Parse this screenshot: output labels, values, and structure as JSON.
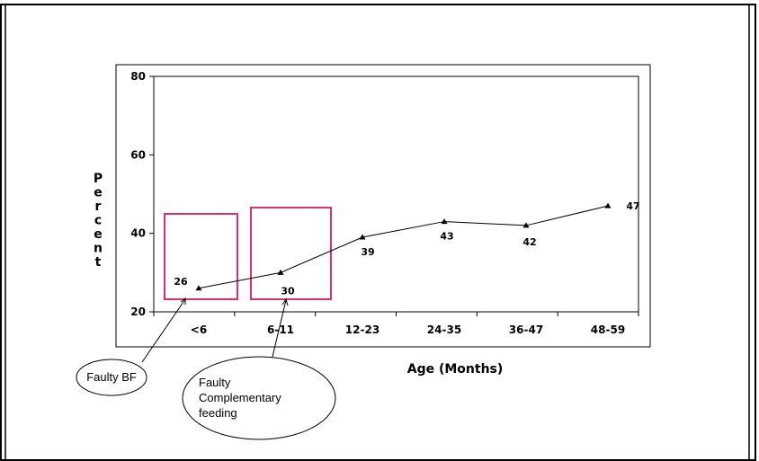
{
  "chart_data": {
    "type": "line",
    "categories": [
      "<6",
      "6-11",
      "12-23",
      "24-35",
      "36-47",
      "48-59"
    ],
    "values": [
      26,
      30,
      39,
      43,
      42,
      47
    ],
    "data_labels": [
      "26",
      "30",
      "39",
      "43",
      "42",
      "47"
    ],
    "xlabel": "Age (Months)",
    "ylabel": "Percent",
    "ylim": [
      20,
      80
    ],
    "yticks": [
      "20",
      "40",
      "60",
      "80"
    ],
    "grid": false,
    "marker": "triangle",
    "line_color": "#000000",
    "highlight_color": "#e0306e",
    "highlights": [
      {
        "category": "<6",
        "annotation": "Faulty BF"
      },
      {
        "category": "6-11",
        "annotation": "Faulty Complementary feeding"
      }
    ]
  },
  "callouts": {
    "faulty_bf": "Faulty BF",
    "faulty_cf_line1": "Faulty",
    "faulty_cf_line2": "Complementary",
    "faulty_cf_line3": "feeding"
  }
}
